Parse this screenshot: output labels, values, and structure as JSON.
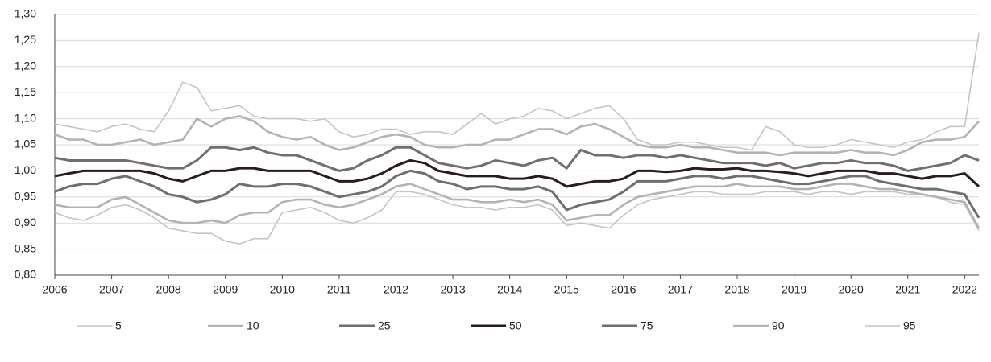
{
  "chart_data": {
    "type": "line",
    "x": [
      2006,
      2006.25,
      2006.5,
      2006.75,
      2007,
      2007.25,
      2007.5,
      2007.75,
      2008,
      2008.25,
      2008.5,
      2008.75,
      2009,
      2009.25,
      2009.5,
      2009.75,
      2010,
      2010.25,
      2010.5,
      2010.75,
      2011,
      2011.25,
      2011.5,
      2011.75,
      2012,
      2012.25,
      2012.5,
      2012.75,
      2013,
      2013.25,
      2013.5,
      2013.75,
      2014,
      2014.25,
      2014.5,
      2014.75,
      2015,
      2015.25,
      2015.5,
      2015.75,
      2016,
      2016.25,
      2016.5,
      2016.75,
      2017,
      2017.25,
      2017.5,
      2017.75,
      2018,
      2018.25,
      2018.5,
      2018.75,
      2019,
      2019.25,
      2019.5,
      2019.75,
      2020,
      2020.25,
      2020.5,
      2020.75,
      2021,
      2021.25,
      2021.5,
      2021.75,
      2022,
      2022.25
    ],
    "series": [
      {
        "name": "5",
        "color": "#c4c4c4",
        "values": [
          0.92,
          0.91,
          0.905,
          0.915,
          0.93,
          0.935,
          0.925,
          0.91,
          0.89,
          0.885,
          0.88,
          0.88,
          0.865,
          0.86,
          0.87,
          0.87,
          0.92,
          0.925,
          0.93,
          0.92,
          0.905,
          0.9,
          0.91,
          0.925,
          0.96,
          0.96,
          0.955,
          0.945,
          0.935,
          0.93,
          0.93,
          0.925,
          0.93,
          0.93,
          0.935,
          0.925,
          0.895,
          0.9,
          0.895,
          0.89,
          0.915,
          0.935,
          0.945,
          0.95,
          0.955,
          0.96,
          0.96,
          0.955,
          0.955,
          0.955,
          0.96,
          0.96,
          0.96,
          0.955,
          0.96,
          0.96,
          0.955,
          0.96,
          0.96,
          0.96,
          0.955,
          0.955,
          0.95,
          0.94,
          0.935,
          0.885
        ]
      },
      {
        "name": "10",
        "color": "#b3b3b3",
        "values": [
          0.935,
          0.93,
          0.93,
          0.93,
          0.945,
          0.95,
          0.935,
          0.92,
          0.905,
          0.9,
          0.9,
          0.905,
          0.9,
          0.915,
          0.92,
          0.92,
          0.94,
          0.945,
          0.945,
          0.935,
          0.93,
          0.935,
          0.945,
          0.955,
          0.97,
          0.975,
          0.965,
          0.955,
          0.945,
          0.945,
          0.94,
          0.94,
          0.945,
          0.94,
          0.945,
          0.935,
          0.905,
          0.91,
          0.915,
          0.915,
          0.935,
          0.95,
          0.955,
          0.96,
          0.965,
          0.97,
          0.97,
          0.97,
          0.975,
          0.97,
          0.97,
          0.97,
          0.965,
          0.965,
          0.97,
          0.975,
          0.975,
          0.97,
          0.965,
          0.965,
          0.96,
          0.955,
          0.95,
          0.945,
          0.94,
          0.89
        ]
      },
      {
        "name": "25",
        "color": "#6f6f6f",
        "values": [
          0.96,
          0.97,
          0.975,
          0.975,
          0.985,
          0.99,
          0.98,
          0.97,
          0.955,
          0.95,
          0.94,
          0.945,
          0.955,
          0.975,
          0.97,
          0.97,
          0.975,
          0.975,
          0.97,
          0.96,
          0.95,
          0.955,
          0.96,
          0.97,
          0.99,
          1.0,
          0.995,
          0.98,
          0.975,
          0.965,
          0.97,
          0.97,
          0.965,
          0.965,
          0.97,
          0.96,
          0.925,
          0.935,
          0.94,
          0.945,
          0.96,
          0.98,
          0.98,
          0.98,
          0.985,
          0.99,
          0.99,
          0.985,
          0.99,
          0.99,
          0.985,
          0.98,
          0.975,
          0.975,
          0.98,
          0.985,
          0.99,
          0.99,
          0.98,
          0.975,
          0.97,
          0.965,
          0.965,
          0.96,
          0.955,
          0.91
        ]
      },
      {
        "name": "50",
        "color": "#2a1c1c",
        "values": [
          0.99,
          0.995,
          1.0,
          1.0,
          1.0,
          1.0,
          1.0,
          0.995,
          0.985,
          0.98,
          0.99,
          1.0,
          1.0,
          1.005,
          1.005,
          1.0,
          1.0,
          1.0,
          1.0,
          0.99,
          0.98,
          0.98,
          0.985,
          0.995,
          1.01,
          1.02,
          1.015,
          1.0,
          0.995,
          0.99,
          0.99,
          0.99,
          0.985,
          0.985,
          0.99,
          0.985,
          0.97,
          0.975,
          0.98,
          0.98,
          0.985,
          1.0,
          1.0,
          0.998,
          1.0,
          1.005,
          1.003,
          1.003,
          1.005,
          1.0,
          1.0,
          0.998,
          0.995,
          0.99,
          0.995,
          1.0,
          1.0,
          1.0,
          0.995,
          0.995,
          0.99,
          0.985,
          0.99,
          0.99,
          0.995,
          0.97
        ]
      },
      {
        "name": "75",
        "color": "#6f6f6f",
        "values": [
          1.025,
          1.02,
          1.02,
          1.02,
          1.02,
          1.02,
          1.015,
          1.01,
          1.005,
          1.005,
          1.02,
          1.045,
          1.045,
          1.04,
          1.045,
          1.035,
          1.03,
          1.03,
          1.02,
          1.01,
          1.0,
          1.005,
          1.02,
          1.03,
          1.045,
          1.045,
          1.03,
          1.015,
          1.01,
          1.005,
          1.01,
          1.02,
          1.015,
          1.01,
          1.02,
          1.025,
          1.005,
          1.04,
          1.03,
          1.03,
          1.025,
          1.03,
          1.03,
          1.025,
          1.03,
          1.025,
          1.02,
          1.015,
          1.015,
          1.015,
          1.01,
          1.015,
          1.005,
          1.01,
          1.015,
          1.015,
          1.02,
          1.015,
          1.015,
          1.01,
          1.0,
          1.005,
          1.01,
          1.015,
          1.03,
          1.02
        ]
      },
      {
        "name": "90",
        "color": "#b3b3b3",
        "values": [
          1.07,
          1.06,
          1.06,
          1.05,
          1.05,
          1.055,
          1.06,
          1.05,
          1.055,
          1.06,
          1.1,
          1.085,
          1.1,
          1.105,
          1.095,
          1.075,
          1.065,
          1.06,
          1.065,
          1.05,
          1.04,
          1.045,
          1.055,
          1.065,
          1.07,
          1.065,
          1.05,
          1.045,
          1.045,
          1.05,
          1.05,
          1.06,
          1.06,
          1.07,
          1.08,
          1.08,
          1.07,
          1.085,
          1.09,
          1.08,
          1.065,
          1.05,
          1.045,
          1.045,
          1.05,
          1.045,
          1.045,
          1.04,
          1.035,
          1.035,
          1.035,
          1.03,
          1.035,
          1.035,
          1.035,
          1.035,
          1.04,
          1.035,
          1.035,
          1.03,
          1.04,
          1.055,
          1.06,
          1.06,
          1.065,
          1.095
        ]
      },
      {
        "name": "95",
        "color": "#c4c4c4",
        "values": [
          1.09,
          1.085,
          1.08,
          1.075,
          1.085,
          1.09,
          1.08,
          1.075,
          1.115,
          1.17,
          1.16,
          1.115,
          1.12,
          1.125,
          1.105,
          1.1,
          1.1,
          1.1,
          1.095,
          1.1,
          1.075,
          1.065,
          1.07,
          1.08,
          1.08,
          1.07,
          1.075,
          1.075,
          1.07,
          1.09,
          1.11,
          1.09,
          1.1,
          1.105,
          1.12,
          1.115,
          1.1,
          1.11,
          1.12,
          1.125,
          1.1,
          1.06,
          1.05,
          1.05,
          1.055,
          1.055,
          1.05,
          1.045,
          1.045,
          1.04,
          1.085,
          1.075,
          1.05,
          1.045,
          1.045,
          1.05,
          1.06,
          1.055,
          1.05,
          1.045,
          1.055,
          1.06,
          1.075,
          1.085,
          1.085,
          1.265
        ]
      }
    ],
    "xlim": [
      2006,
      2022.25
    ],
    "xticks": [
      2006,
      2007,
      2008,
      2009,
      2010,
      2011,
      2012,
      2013,
      2014,
      2015,
      2016,
      2017,
      2018,
      2019,
      2020,
      2021,
      2022
    ],
    "ylim": [
      0.8,
      1.3
    ],
    "yticks": [
      {
        "value": 0.8,
        "label": "0,80"
      },
      {
        "value": 0.85,
        "label": "0,85"
      },
      {
        "value": 0.9,
        "label": "0,90"
      },
      {
        "value": 0.95,
        "label": "0,95"
      },
      {
        "value": 1.0,
        "label": "1,00"
      },
      {
        "value": 1.05,
        "label": "1,05"
      },
      {
        "value": 1.1,
        "label": "1,10"
      },
      {
        "value": 1.15,
        "label": "1,15"
      },
      {
        "value": 1.2,
        "label": "1,20"
      },
      {
        "value": 1.25,
        "label": "1,25"
      },
      {
        "value": 1.3,
        "label": "1,30"
      }
    ],
    "grid": true,
    "legend": "bottom"
  }
}
